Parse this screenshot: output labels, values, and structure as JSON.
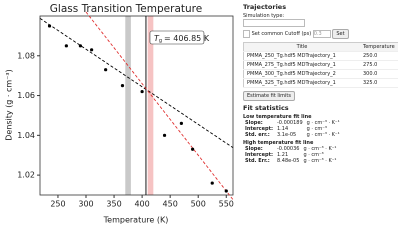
{
  "chart_data": {
    "type": "scatter",
    "title": "Glass Transition Temperature",
    "x_label": "Temperature (K)",
    "y_label": "Density (g · cm⁻³)",
    "x": [
      235,
      265,
      290,
      310,
      335,
      365,
      400,
      440,
      470,
      490,
      525,
      550
    ],
    "values": [
      1.095,
      1.085,
      1.085,
      1.083,
      1.073,
      1.065,
      1.062,
      1.04,
      1.046,
      1.033,
      1.016,
      1.012
    ],
    "color": "#000000",
    "xlim": [
      218,
      562
    ],
    "ylim": [
      1.01,
      1.1
    ],
    "xticks": [
      250,
      300,
      350,
      400,
      450,
      500,
      550
    ],
    "yticks": [
      {
        "value": 1.02,
        "label": "1.02"
      },
      {
        "value": 1.04,
        "label": "1.04"
      },
      {
        "value": 1.06,
        "label": "1.06"
      },
      {
        "value": 1.08,
        "label": "1.08"
      }
    ],
    "fit_lines": [
      {
        "color": "#000000",
        "x": [
          218,
          562
        ],
        "y": [
          1.0988,
          1.0338
        ]
      },
      {
        "color": "#e03030",
        "x": [
          300,
          562
        ],
        "y": [
          1.102,
          1.0077
        ]
      }
    ],
    "bands": [
      {
        "color": "#bbbbbb",
        "range": [
          370,
          380
        ]
      },
      {
        "color": "#f4b4b4",
        "range": [
          410,
          420
        ]
      }
    ],
    "tg_line": 406.85,
    "annotation": {
      "symbol": "T",
      "subscript": "g",
      "text": "= 406.85 K"
    }
  },
  "panel": {
    "trajectories": {
      "title": "Trajectories",
      "sim_type_label": "Simulation type:",
      "cutoff_label": "Set common Cutoff (ps)",
      "cutoff_value": "0.3",
      "set_button": "Set",
      "headers": [
        "Title",
        "Temperature"
      ],
      "rows": [
        [
          "PMMA_250_Tg.hdf5 MDTrajectory_1",
          "250.0"
        ],
        [
          "PMMA_275_Tg.hdf5 MDTrajectory_1",
          "275.0"
        ],
        [
          "PMMA_300_Tg.hdf5 MDTrajectory_2",
          "300.0"
        ],
        [
          "PMMA_325_Tg.hdf5 MDTrajectory_1",
          "325.0"
        ]
      ],
      "estimate_button": "Estimate fit limits"
    },
    "fit_statistics": {
      "title": "Fit statistics",
      "sections": [
        {
          "title": "Low temperature fit line",
          "rows": [
            [
              "Slope:",
              "-0.000189",
              "g · cm⁻³ · K⁻¹"
            ],
            [
              "Intercept:",
              "1.14",
              "g · cm⁻³"
            ],
            [
              "Std. err.:",
              "3.1e-05",
              "g · cm⁻³ · K⁻¹"
            ]
          ]
        },
        {
          "title": "High temperature fit line",
          "rows": [
            [
              "Slope:",
              "-0.00036",
              "g · cm⁻³ · K⁻¹"
            ],
            [
              "Intercept:",
              "1.21",
              "g · cm⁻³"
            ],
            [
              "Std. Err.:",
              "8.48e-05",
              "g · cm⁻³ · K⁻¹"
            ]
          ]
        }
      ]
    }
  }
}
